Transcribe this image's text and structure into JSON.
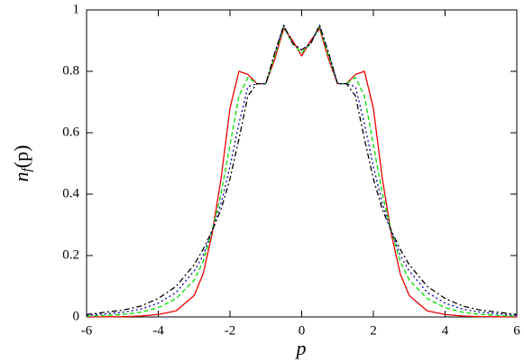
{
  "chart_data": {
    "type": "line",
    "xlabel": "p",
    "ylabel": [
      "n",
      "f",
      "(p)"
    ],
    "x": [
      -6,
      -5,
      -4.5,
      -4,
      -3.5,
      -3,
      -2.75,
      -2.5,
      -2.25,
      -2,
      -1.75,
      -1.5,
      -1.25,
      -1,
      -0.75,
      -0.5,
      -0.25,
      0,
      0.25,
      0.5,
      0.75,
      1,
      1.25,
      1.5,
      1.75,
      2,
      2.25,
      2.5,
      2.75,
      3,
      3.5,
      4,
      4.5,
      5,
      6
    ],
    "series": [
      {
        "color": "#ee0000",
        "dash": "none",
        "values": [
          0,
          0.001,
          0.003,
          0.008,
          0.02,
          0.07,
          0.14,
          0.27,
          0.45,
          0.68,
          0.8,
          0.79,
          0.76,
          0.76,
          0.84,
          0.94,
          0.9,
          0.85,
          0.9,
          0.94,
          0.84,
          0.76,
          0.76,
          0.79,
          0.8,
          0.68,
          0.45,
          0.27,
          0.14,
          0.07,
          0.02,
          0.008,
          0.003,
          0.001,
          0
        ]
      },
      {
        "color": "#00dd00",
        "dash": "5 3",
        "values": [
          0.002,
          0.008,
          0.015,
          0.03,
          0.06,
          0.12,
          0.18,
          0.28,
          0.4,
          0.56,
          0.72,
          0.78,
          0.76,
          0.76,
          0.85,
          0.945,
          0.89,
          0.86,
          0.89,
          0.945,
          0.85,
          0.76,
          0.76,
          0.78,
          0.72,
          0.56,
          0.4,
          0.28,
          0.18,
          0.12,
          0.06,
          0.03,
          0.015,
          0.008,
          0.002
        ]
      },
      {
        "color": "#0000aa",
        "dash": "2 3",
        "values": [
          0.005,
          0.015,
          0.025,
          0.045,
          0.08,
          0.15,
          0.2,
          0.28,
          0.37,
          0.49,
          0.63,
          0.75,
          0.76,
          0.76,
          0.86,
          0.95,
          0.89,
          0.87,
          0.89,
          0.95,
          0.86,
          0.76,
          0.76,
          0.75,
          0.63,
          0.49,
          0.37,
          0.28,
          0.2,
          0.15,
          0.08,
          0.045,
          0.025,
          0.015,
          0.005
        ]
      },
      {
        "color": "#000000",
        "dash": "6 3 2 3",
        "values": [
          0.008,
          0.022,
          0.035,
          0.06,
          0.1,
          0.17,
          0.22,
          0.28,
          0.35,
          0.45,
          0.58,
          0.72,
          0.76,
          0.76,
          0.86,
          0.95,
          0.89,
          0.87,
          0.89,
          0.95,
          0.86,
          0.76,
          0.76,
          0.72,
          0.58,
          0.45,
          0.35,
          0.28,
          0.22,
          0.17,
          0.1,
          0.06,
          0.035,
          0.022,
          0.008
        ]
      }
    ],
    "xlim": [
      -6,
      6
    ],
    "xticks": [
      -6,
      -4,
      -2,
      0,
      2,
      4,
      6
    ],
    "ylim": [
      0,
      1
    ],
    "yticks": [
      0,
      0.2,
      0.4,
      0.6,
      0.8,
      1
    ],
    "grid": false
  }
}
